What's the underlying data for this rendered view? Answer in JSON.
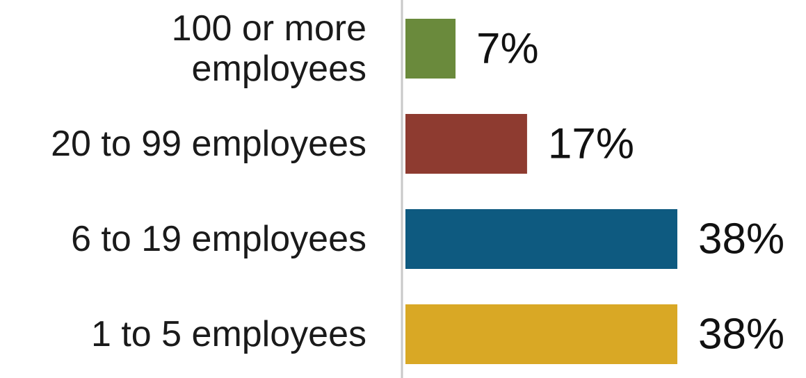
{
  "chart_data": {
    "type": "bar",
    "orientation": "horizontal",
    "categories": [
      [
        "100 or more",
        "employees"
      ],
      [
        "20 to 99 employees"
      ],
      [
        "6 to 19 employees"
      ],
      [
        "1 to 5 employees"
      ]
    ],
    "values": [
      7,
      17,
      38,
      38
    ],
    "value_labels": [
      "7%",
      "17%",
      "38%",
      "38%"
    ],
    "colors": [
      "#6a8a3c",
      "#8e3b30",
      "#0e5a80",
      "#d9a825"
    ],
    "xlim": [
      0,
      38
    ],
    "grid": false,
    "legend": "none",
    "title": "",
    "xlabel": "",
    "ylabel": ""
  }
}
